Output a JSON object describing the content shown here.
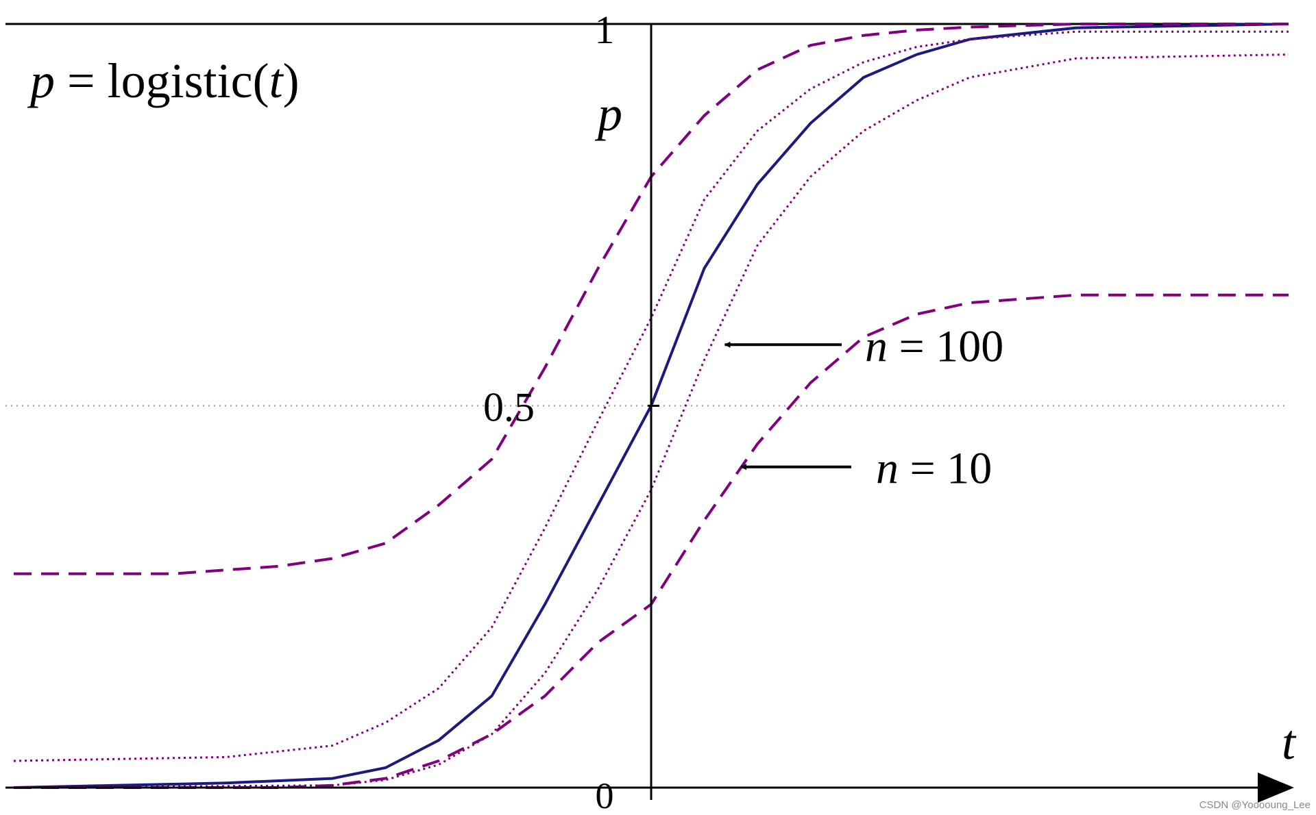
{
  "chart_data": {
    "type": "line",
    "title": {
      "p": "p",
      "eq": " = logistic(",
      "t": "t",
      "close": ")"
    },
    "xlabel": "t",
    "ylabel": "p",
    "xlim": [
      -6,
      6
    ],
    "ylim": [
      0,
      1
    ],
    "y_ticks": [
      {
        "value": 0,
        "label": "0"
      },
      {
        "value": 0.5,
        "label": "0.5"
      },
      {
        "value": 1,
        "label": "1"
      }
    ],
    "reference_lines": [
      {
        "y": 1,
        "style": "solid"
      },
      {
        "y": 0.5,
        "style": "dotted"
      }
    ],
    "colors": {
      "center": "#1a1a80",
      "band": "#800080",
      "axis": "#000000",
      "ref": "#999999"
    },
    "series": [
      {
        "style": "solid",
        "x": [
          -6,
          -4,
          -3,
          -2.5,
          -2,
          -1.5,
          -1,
          -0.5,
          0,
          0.5,
          1,
          1.5,
          2,
          2.5,
          3,
          4,
          6
        ],
        "y": [
          0.0,
          0.006,
          0.012,
          0.026,
          0.062,
          0.12,
          0.24,
          0.37,
          0.5,
          0.68,
          0.79,
          0.87,
          0.93,
          0.96,
          0.98,
          0.995,
          1.0
        ]
      },
      {
        "style": "dotted",
        "x": [
          -6,
          -4,
          -3,
          -2.5,
          -2,
          -1.5,
          -1,
          -0.5,
          0,
          0.5,
          1,
          1.5,
          2,
          2.5,
          3,
          4,
          6
        ],
        "y": [
          0.035,
          0.04,
          0.055,
          0.085,
          0.13,
          0.21,
          0.34,
          0.48,
          0.615,
          0.77,
          0.86,
          0.915,
          0.95,
          0.97,
          0.98,
          0.99,
          0.99
        ]
      },
      {
        "style": "dotted",
        "x": [
          -6,
          -3,
          -2.5,
          -2,
          -1.5,
          -1,
          -0.5,
          0,
          0.5,
          1,
          1.5,
          2,
          2.5,
          3,
          4,
          6
        ],
        "y": [
          0.0,
          0.003,
          0.01,
          0.03,
          0.07,
          0.15,
          0.26,
          0.39,
          0.56,
          0.71,
          0.8,
          0.86,
          0.9,
          0.93,
          0.955,
          0.96
        ]
      },
      {
        "style": "dashed",
        "name_label": "n = 10",
        "x": [
          -6,
          -4.5,
          -3.5,
          -3,
          -2.5,
          -2,
          -1.5,
          -1,
          -0.5,
          0,
          0.5,
          1,
          1.5,
          2,
          2.5,
          3,
          4,
          6
        ],
        "y": [
          0.28,
          0.28,
          0.29,
          0.3,
          0.32,
          0.37,
          0.43,
          0.55,
          0.68,
          0.8,
          0.88,
          0.94,
          0.972,
          0.985,
          0.992,
          0.996,
          1.0,
          1.0
        ]
      },
      {
        "style": "dashed",
        "x": [
          -6,
          -3.5,
          -3,
          -2.5,
          -2,
          -1.5,
          -1,
          -0.5,
          0,
          0.5,
          1,
          1.5,
          2,
          2.5,
          3,
          4,
          6
        ],
        "y": [
          0.0,
          0.0,
          0.003,
          0.012,
          0.035,
          0.07,
          0.12,
          0.19,
          0.24,
          0.35,
          0.45,
          0.53,
          0.59,
          0.62,
          0.635,
          0.645,
          0.645
        ]
      }
    ],
    "annotations": [
      {
        "n": "n",
        "rest": " = 100",
        "points_to": {
          "x": 0.5,
          "y": 0.58
        }
      },
      {
        "n": "n",
        "rest": " = 10",
        "points_to": {
          "x": 0.6,
          "y": 0.42
        }
      }
    ]
  },
  "watermark": "CSDN @Yooooung_Lee"
}
